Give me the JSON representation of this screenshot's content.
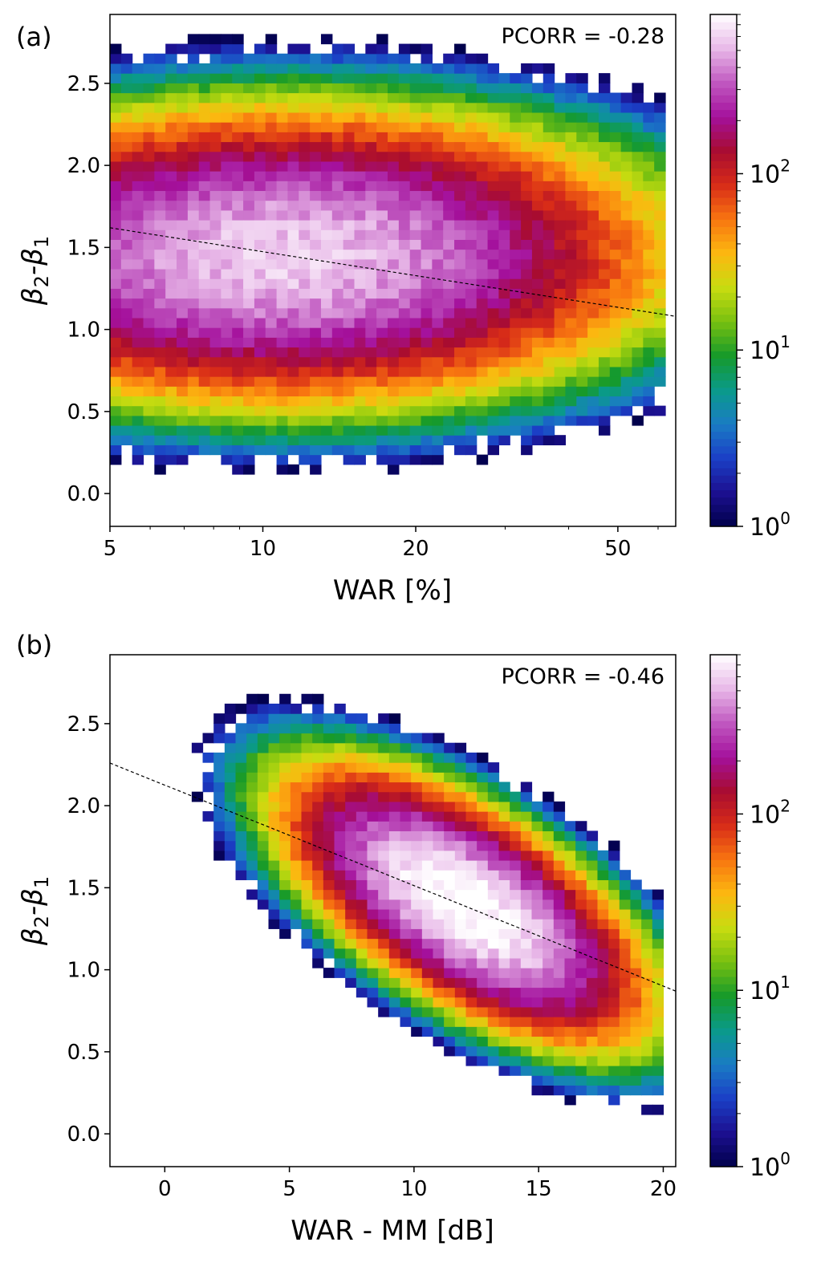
{
  "chart_data": [
    {
      "type": "heatmap",
      "panel_label": "(a)",
      "annotation": "PCORR = -0.28",
      "xlabel": "WAR [%]",
      "ylabel_main": "β",
      "ylabel_sub1": "2",
      "ylabel_mid": "-β",
      "ylabel_sub2": "1",
      "x_scale": "log",
      "xlim": [
        5,
        65
      ],
      "ylim": [
        -0.2,
        2.92
      ],
      "x_ticks": [
        5,
        10,
        20,
        50
      ],
      "x_tick_labels": [
        "5",
        "10",
        "20",
        "50"
      ],
      "y_ticks": [
        0.0,
        0.5,
        1.0,
        1.5,
        2.0,
        2.5
      ],
      "y_tick_labels": [
        "0.0",
        "0.5",
        "1.0",
        "1.5",
        "2.0",
        "2.5"
      ],
      "distribution": {
        "x_range": [
          5,
          62
        ],
        "peak_x": 11,
        "peak_y": 1.45,
        "peak_count": 600,
        "axis_a_log": 1.15,
        "axis_b": 0.6
      },
      "regression": {
        "x0": 5,
        "y0": 1.62,
        "x1": 65,
        "y1": 1.08
      },
      "colorbar": {
        "scale": "log",
        "min": 1,
        "max": 800,
        "tick_base": "10",
        "tick_exponents": [
          "0",
          "1",
          "2"
        ]
      }
    },
    {
      "type": "heatmap",
      "panel_label": "(b)",
      "annotation": "PCORR = -0.46",
      "xlabel": "WAR - MM [dB]",
      "ylabel_main": "β",
      "ylabel_sub1": "2",
      "ylabel_mid": "-β",
      "ylabel_sub2": "1",
      "x_scale": "linear",
      "xlim": [
        -2.2,
        20.5
      ],
      "ylim": [
        -0.2,
        2.92
      ],
      "x_ticks": [
        0,
        5,
        10,
        15,
        20
      ],
      "x_tick_labels": [
        "0",
        "5",
        "10",
        "15",
        "20"
      ],
      "y_ticks": [
        0.0,
        0.5,
        1.0,
        1.5,
        2.0,
        2.5
      ],
      "y_tick_labels": [
        "0.0",
        "0.5",
        "1.0",
        "1.5",
        "2.0",
        "2.5"
      ],
      "distribution": {
        "x_range": [
          -2,
          20
        ],
        "peak_x": 12,
        "peak_y": 1.4,
        "peak_count": 900,
        "slope": -0.075,
        "sigma_u": 4.8,
        "sigma_v": 0.42
      },
      "regression": {
        "x0": -2.2,
        "y0": 2.26,
        "x1": 20.5,
        "y1": 0.87
      },
      "colorbar": {
        "scale": "log",
        "min": 1,
        "max": 800,
        "tick_base": "10",
        "tick_exponents": [
          "0",
          "1",
          "2"
        ]
      }
    }
  ],
  "colormap": {
    "name": "nipy_spectral_like",
    "stops": [
      "#00004a",
      "#1c1090",
      "#1b3fc6",
      "#1a7cc4",
      "#0a9a8a",
      "#169a2a",
      "#78c010",
      "#c8dc10",
      "#fcb810",
      "#f87610",
      "#d82c18",
      "#a80c30",
      "#a4109c",
      "#c058c0",
      "#e8b8e8",
      "#ffffff"
    ]
  }
}
